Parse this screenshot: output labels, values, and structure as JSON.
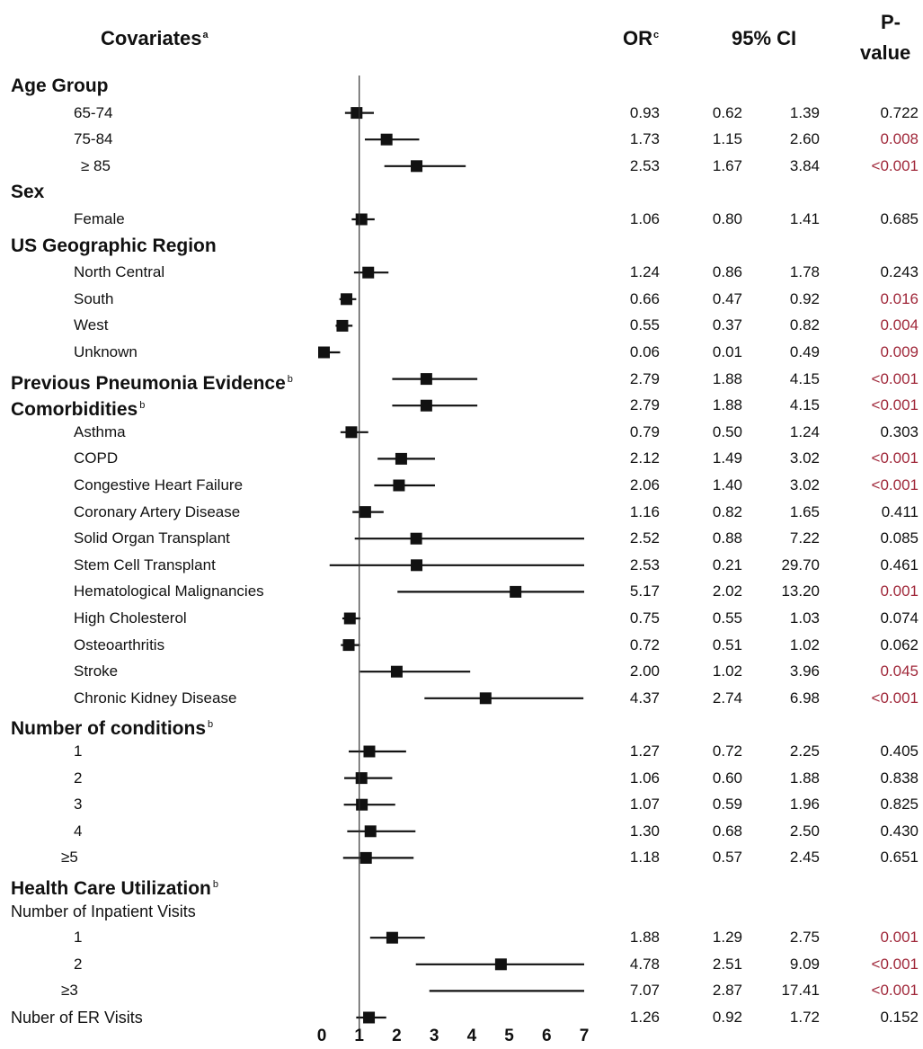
{
  "headers": {
    "covariates": "Covariates",
    "covariates_sup": "a",
    "or": "OR",
    "or_sup": "c",
    "ci": "95% CI",
    "pvalue_line1": "P-",
    "pvalue_line2": "value"
  },
  "colors": {
    "significant": "#a0283a",
    "text": "#111111",
    "marker": "#111111"
  },
  "chart_data": {
    "type": "forest",
    "xlim": [
      0,
      7
    ],
    "xticks": [
      "0",
      "1",
      "2",
      "3",
      "4",
      "5",
      "6",
      "7"
    ],
    "reference_line": 1,
    "rows": [
      {
        "label": "Age Group",
        "level": 0
      },
      {
        "label": "65-74",
        "level": 1,
        "or": "0.93",
        "lo": "0.62",
        "hi": "1.39",
        "p": "0.722",
        "sig": false
      },
      {
        "label": "75-84",
        "level": 1,
        "or": "1.73",
        "lo": "1.15",
        "hi": "2.60",
        "p": "0.008",
        "sig": true
      },
      {
        "label": "≥ 85",
        "level": 1,
        "indent": "extra",
        "or": "2.53",
        "lo": "1.67",
        "hi": "3.84",
        "p": "<0.001",
        "sig": true
      },
      {
        "label": "Sex",
        "level": 0
      },
      {
        "label": "Female",
        "level": 1,
        "or": "1.06",
        "lo": "0.80",
        "hi": "1.41",
        "p": "0.685",
        "sig": false
      },
      {
        "label": "US Geographic Region",
        "level": 0
      },
      {
        "label": "North Central",
        "level": 1,
        "or": "1.24",
        "lo": "0.86",
        "hi": "1.78",
        "p": "0.243",
        "sig": false
      },
      {
        "label": "South",
        "level": 1,
        "or": "0.66",
        "lo": "0.47",
        "hi": "0.92",
        "p": "0.016",
        "sig": true
      },
      {
        "label": "West",
        "level": 1,
        "or": "0.55",
        "lo": "0.37",
        "hi": "0.82",
        "p": "0.004",
        "sig": true
      },
      {
        "label": "Unknown",
        "level": 1,
        "or": "0.06",
        "lo": "0.01",
        "hi": "0.49",
        "p": "0.009",
        "sig": true
      },
      {
        "label": "Previous Pneumonia Evidence",
        "sup": "b",
        "level": 0,
        "or": "2.79",
        "lo": "1.88",
        "hi": "4.15",
        "p": "<0.001",
        "sig": true
      },
      {
        "label": "Comorbidities",
        "sup": "b",
        "level": 0,
        "or": "2.79",
        "lo": "1.88",
        "hi": "4.15",
        "p": "<0.001",
        "sig": true
      },
      {
        "label": "Asthma",
        "level": 1,
        "or": "0.79",
        "lo": "0.50",
        "hi": "1.24",
        "p": "0.303",
        "sig": false
      },
      {
        "label": "COPD",
        "level": 1,
        "or": "2.12",
        "lo": "1.49",
        "hi": "3.02",
        "p": "<0.001",
        "sig": true
      },
      {
        "label": "Congestive Heart Failure",
        "level": 1,
        "or": "2.06",
        "lo": "1.40",
        "hi": "3.02",
        "p": "<0.001",
        "sig": true
      },
      {
        "label": "Coronary Artery Disease",
        "level": 1,
        "or": "1.16",
        "lo": "0.82",
        "hi": "1.65",
        "p": "0.411",
        "sig": false
      },
      {
        "label": "Solid Organ Transplant",
        "level": 1,
        "or": "2.52",
        "lo": "0.88",
        "hi": "7.22",
        "p": "0.085",
        "sig": false
      },
      {
        "label": "Stem Cell Transplant",
        "level": 1,
        "or": "2.53",
        "lo": "0.21",
        "hi": "29.70",
        "p": "0.461",
        "sig": false
      },
      {
        "label": "Hematological Malignancies",
        "level": 1,
        "or": "5.17",
        "lo": "2.02",
        "hi": "13.20",
        "p": "0.001",
        "sig": true
      },
      {
        "label": "High Cholesterol",
        "level": 1,
        "or": "0.75",
        "lo": "0.55",
        "hi": "1.03",
        "p": "0.074",
        "sig": false
      },
      {
        "label": "Osteoarthritis",
        "level": 1,
        "or": "0.72",
        "lo": "0.51",
        "hi": "1.02",
        "p": "0.062",
        "sig": false
      },
      {
        "label": "Stroke",
        "level": 1,
        "or": "2.00",
        "lo": "1.02",
        "hi": "3.96",
        "p": "0.045",
        "sig": true
      },
      {
        "label": "Chronic Kidney Disease",
        "level": 1,
        "or": "4.37",
        "lo": "2.74",
        "hi": "6.98",
        "p": "<0.001",
        "sig": true
      },
      {
        "label": "Number of conditions",
        "sup": "b",
        "level": 0
      },
      {
        "label": "1",
        "level": 1,
        "or": "1.27",
        "lo": "0.72",
        "hi": "2.25",
        "p": "0.405",
        "sig": false
      },
      {
        "label": "2",
        "level": 1,
        "or": "1.06",
        "lo": "0.60",
        "hi": "1.88",
        "p": "0.838",
        "sig": false
      },
      {
        "label": "3",
        "level": 1,
        "or": "1.07",
        "lo": "0.59",
        "hi": "1.96",
        "p": "0.825",
        "sig": false
      },
      {
        "label": "4",
        "level": 1,
        "or": "1.30",
        "lo": "0.68",
        "hi": "2.50",
        "p": "0.430",
        "sig": false
      },
      {
        "label": "≥5",
        "level": 1,
        "indent": "less",
        "or": "1.18",
        "lo": "0.57",
        "hi": "2.45",
        "p": "0.651",
        "sig": false
      },
      {
        "label": "Health Care Utilization",
        "sup": "b",
        "level": 0
      },
      {
        "label": "Number of Inpatient Visits",
        "level": 0,
        "plain": true
      },
      {
        "label": "1",
        "level": 1,
        "or": "1.88",
        "lo": "1.29",
        "hi": "2.75",
        "p": "0.001",
        "sig": true
      },
      {
        "label": "2",
        "level": 1,
        "or": "4.78",
        "lo": "2.51",
        "hi": "9.09",
        "p": "<0.001",
        "sig": true
      },
      {
        "label": "≥3",
        "level": 1,
        "indent": "less",
        "or": "7.07",
        "lo": "2.87",
        "hi": "17.41",
        "p": "<0.001",
        "sig": true
      },
      {
        "label": "Nuber of ER Visits",
        "level": 0,
        "plain": true,
        "or": "1.26",
        "lo": "0.92",
        "hi": "1.72",
        "p": "0.152",
        "sig": false
      }
    ]
  }
}
